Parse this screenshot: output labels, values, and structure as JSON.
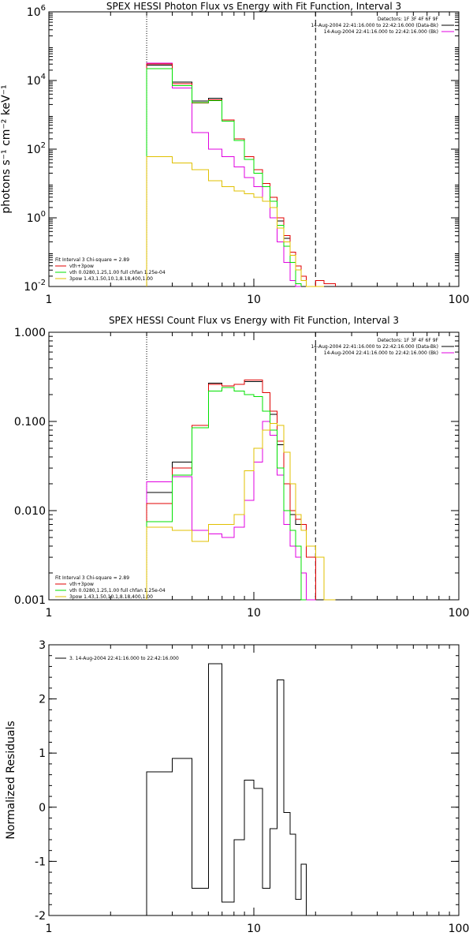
{
  "colors": {
    "background": "#ffffff",
    "data": "#000000",
    "total": "#e00000",
    "thermal": "#00e000",
    "nonthermal": "#e0c000",
    "background_count": "#e000e0"
  },
  "chart_data": [
    {
      "type": "line",
      "title": "SPEX HESSI Photon Flux vs Energy with Fit Function, Interval 3",
      "ylabel": "photons s⁻¹ cm⁻² keV⁻¹",
      "xlabel": "",
      "x_scale": "log",
      "y_scale": "log",
      "xlim": [
        1,
        100
      ],
      "ylim": [
        0.01,
        1000000
      ],
      "x_ticks": [
        {
          "value": 1,
          "label": "1"
        },
        {
          "value": 10,
          "label": "10"
        },
        {
          "value": 100,
          "label": "100"
        }
      ],
      "y_ticks": [
        {
          "value": 0.01,
          "label": "10⁻²",
          "mant": "10",
          "exp": "-2"
        },
        {
          "value": 1,
          "label": "10⁰",
          "mant": "10",
          "exp": "0"
        },
        {
          "value": 100,
          "label": "10²",
          "mant": "10",
          "exp": "2"
        },
        {
          "value": 10000,
          "label": "10⁴",
          "mant": "10",
          "exp": "4"
        },
        {
          "value": 1000000,
          "label": "10⁶",
          "mant": "10",
          "exp": "6"
        }
      ],
      "vlines": [
        {
          "x": 3,
          "style": "dotted"
        },
        {
          "x": 20,
          "style": "dashed"
        }
      ],
      "header_lines": [
        "Detectors: 1F 3F 4F 6F 9F",
        "14-Aug-2004 22:41:16.000 to 22:42:16.000 (Data-Bk)",
        "14-Aug-2004 22:41:16.000 to 22:42:16.000 (Bk)"
      ],
      "legend_lines": [
        "Fit Interval 3   Chi-square = 2.89",
        "vth+3pow",
        "vth 0.0280,1.25,1.00  full chfan 1.25e-04",
        "3pow 1.43,1.50,10.1,8.18,400,1.00"
      ],
      "bin_edges": [
        3,
        4,
        5,
        6,
        7,
        8,
        9,
        10,
        11,
        12,
        13,
        14,
        15,
        16,
        17,
        18,
        20,
        22,
        25
      ],
      "series": [
        {
          "name": "",
          "color_key": "data",
          "values": [
            28000,
            9000,
            2500,
            3000,
            700,
            200,
            60,
            25,
            8,
            3,
            0.8,
            0.25,
            0.08,
            0.03,
            0.02,
            0.01,
            null,
            null
          ]
        },
        {
          "name": "",
          "color_key": "background_count",
          "values": [
            32000,
            6000,
            300,
            100,
            60,
            30,
            15,
            8,
            3,
            1,
            0.2,
            0.05,
            0.015,
            0.01,
            null,
            null,
            null,
            null
          ]
        },
        {
          "name": "",
          "color_key": "total",
          "values": [
            30000,
            8000,
            2200,
            2700,
            700,
            200,
            60,
            25,
            10,
            4,
            1,
            0.3,
            0.1,
            0.04,
            0.02,
            0.01,
            0.015,
            0.012
          ]
        },
        {
          "name": "",
          "color_key": "thermal",
          "values": [
            22000,
            7000,
            2300,
            2600,
            650,
            180,
            50,
            20,
            8,
            3,
            0.6,
            0.15,
            0.05,
            0.012,
            null,
            null,
            null,
            null
          ]
        },
        {
          "name": "",
          "color_key": "nonthermal",
          "values": [
            60,
            40,
            25,
            12,
            8,
            6,
            5,
            4,
            3,
            2,
            0.5,
            0.2,
            0.08,
            0.03,
            0.015,
            0.01,
            0.008,
            null
          ]
        }
      ]
    },
    {
      "type": "line",
      "title": "SPEX HESSI Count Flux vs Energy with Fit Function, Interval 3",
      "ylabel": "",
      "xlabel": "",
      "x_scale": "log",
      "y_scale": "log",
      "xlim": [
        1,
        100
      ],
      "ylim": [
        0.001,
        1
      ],
      "x_ticks": [
        {
          "value": 1,
          "label": "1"
        },
        {
          "value": 10,
          "label": "10"
        },
        {
          "value": 100,
          "label": "100"
        }
      ],
      "y_ticks": [
        {
          "value": 0.001,
          "label": "0.001"
        },
        {
          "value": 0.01,
          "label": "0.010"
        },
        {
          "value": 0.1,
          "label": "0.100"
        },
        {
          "value": 1,
          "label": "1.000"
        }
      ],
      "vlines": [
        {
          "x": 3,
          "style": "dotted"
        },
        {
          "x": 20,
          "style": "dashed"
        }
      ],
      "header_lines": [
        "Detectors: 1F 3F 4F 6F 9F",
        "14-Aug-2004 22:41:16.000 to 22:42:16.000 (Data-Bk)",
        "14-Aug-2004 22:41:16.000 to 22:42:16.000 (Bk)"
      ],
      "legend_lines": [
        "Fit Interval 3   Chi-square = 2.89",
        "vth+3pow",
        "vth 0.0280,1.25,1.00  full chfan 1.25e-04",
        "3pow 1.43,1.50,10.1,8.18,400,1.00"
      ],
      "bin_edges": [
        3,
        4,
        5,
        6,
        7,
        8,
        9,
        10,
        11,
        12,
        13,
        14,
        15,
        16,
        17,
        18,
        20,
        22,
        25
      ],
      "series": [
        {
          "name": "",
          "color_key": "data",
          "values": [
            0.016,
            0.035,
            0.085,
            0.27,
            0.25,
            0.26,
            0.28,
            0.28,
            0.21,
            0.12,
            0.055,
            0.02,
            0.009,
            0.007,
            0.006,
            0.004,
            0.001,
            null
          ]
        },
        {
          "name": "",
          "color_key": "background_count",
          "values": [
            0.021,
            0.024,
            0.006,
            0.0055,
            0.005,
            0.0065,
            0.013,
            0.035,
            0.1,
            0.07,
            0.025,
            0.007,
            0.004,
            0.003,
            0.002,
            0.001,
            null,
            null
          ]
        },
        {
          "name": "",
          "color_key": "total",
          "values": [
            0.012,
            0.03,
            0.09,
            0.26,
            0.25,
            0.26,
            0.29,
            0.29,
            0.21,
            0.13,
            0.06,
            0.02,
            0.01,
            0.008,
            0.007,
            0.003,
            null,
            null
          ]
        },
        {
          "name": "",
          "color_key": "thermal",
          "values": [
            0.0075,
            0.025,
            0.085,
            0.22,
            0.24,
            0.22,
            0.2,
            0.19,
            0.13,
            0.08,
            0.03,
            0.01,
            0.006,
            0.004,
            0.001,
            null,
            null,
            null
          ]
        },
        {
          "name": "",
          "color_key": "nonthermal",
          "values": [
            0.0065,
            0.006,
            0.0045,
            0.007,
            0.007,
            0.009,
            0.028,
            0.05,
            0.08,
            0.095,
            0.09,
            0.045,
            0.02,
            0.009,
            0.006,
            0.004,
            0.003,
            0.001
          ]
        }
      ]
    },
    {
      "type": "line",
      "title": "",
      "ylabel": "Normalized Residuals",
      "xlabel": "",
      "x_scale": "log",
      "y_scale": "linear",
      "xlim": [
        1,
        100
      ],
      "ylim": [
        -2,
        3
      ],
      "x_ticks": [
        {
          "value": 1,
          "label": "1"
        },
        {
          "value": 10,
          "label": "10"
        },
        {
          "value": 100,
          "label": "100"
        }
      ],
      "y_ticks": [
        {
          "value": -2,
          "label": "-2"
        },
        {
          "value": -1,
          "label": "-1"
        },
        {
          "value": 0,
          "label": "0"
        },
        {
          "value": 1,
          "label": "1"
        },
        {
          "value": 2,
          "label": "2"
        },
        {
          "value": 3,
          "label": "3"
        }
      ],
      "vlines": [],
      "header_lines": [],
      "legend_lines": [
        "3. 14-Aug-2004 22:41:16.000 to 22:42:16.000"
      ],
      "bin_edges": [
        3,
        4,
        5,
        6,
        7,
        8,
        9,
        10,
        11,
        12,
        13,
        14,
        15,
        16,
        17,
        18,
        20
      ],
      "series": [
        {
          "name": "",
          "color_key": "data",
          "values": [
            0.65,
            0.9,
            -1.5,
            2.65,
            -1.75,
            -0.6,
            0.5,
            0.35,
            -1.5,
            -0.4,
            2.35,
            -0.1,
            -0.5,
            -1.7,
            -1.05,
            -2
          ]
        }
      ]
    }
  ]
}
